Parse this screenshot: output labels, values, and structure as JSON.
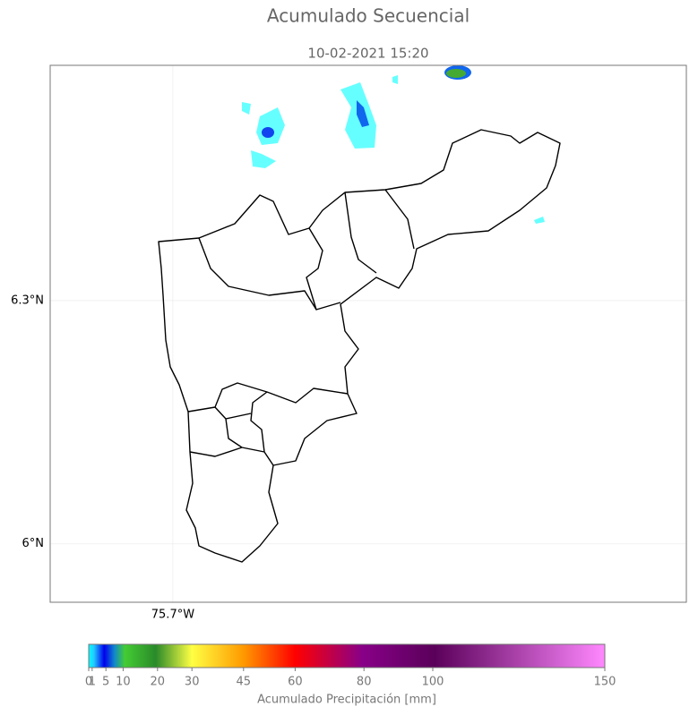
{
  "title": "Acumulado Secuencial",
  "subtitle": "10-02-2021 15:20",
  "map": {
    "xlim": [
      -75.851,
      -75.068
    ],
    "ylim": [
      5.928,
      6.59
    ],
    "xticks": [
      {
        "value": -75.7,
        "label": "75.7°W"
      }
    ],
    "yticks": [
      {
        "value": 6.3,
        "label": "6.3°N"
      },
      {
        "value": 6,
        "label": "6°N"
      }
    ],
    "grid": true
  },
  "colorbar": {
    "label": "Acumulado Precipitación [mm]",
    "lim": [
      0,
      150
    ],
    "ticks": [
      0,
      1,
      5,
      10,
      20,
      30,
      45,
      60,
      80,
      100,
      150
    ]
  }
}
